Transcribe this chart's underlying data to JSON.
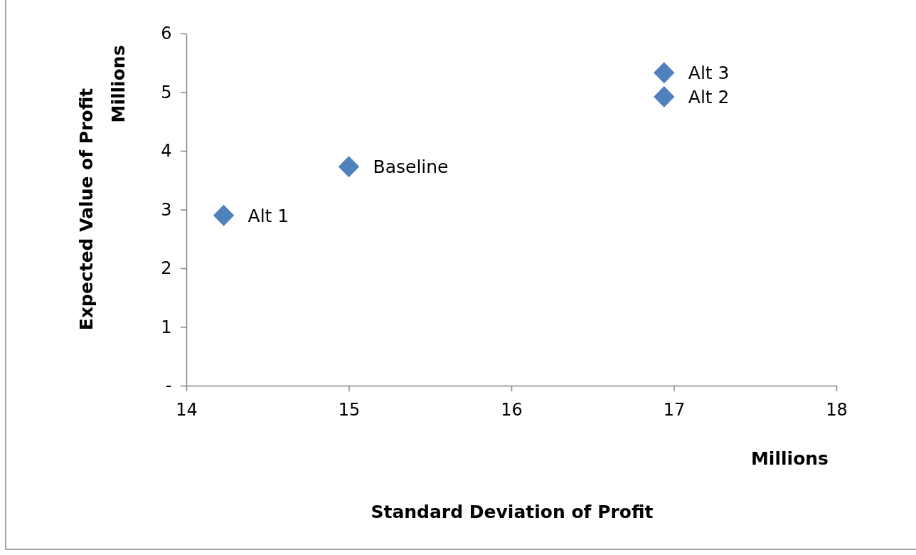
{
  "chart_data": {
    "type": "scatter",
    "xlabel": "Standard Deviation of Profit",
    "ylabel": "Expected Value of Profit",
    "x": [
      14.23,
      15.0,
      16.94,
      16.94
    ],
    "series": [
      {
        "color": "#4f81bd",
        "values": [
          2.9,
          3.73,
          4.92,
          5.33
        ]
      }
    ],
    "xlim": [
      14,
      18
    ],
    "xticks": [
      14,
      15,
      16,
      17,
      18
    ],
    "ylim": [
      0,
      6
    ],
    "yticks": [
      {
        "value": 0,
        "label": "-"
      },
      1,
      2,
      3,
      4,
      5,
      6
    ],
    "grid": false,
    "marker": "diamond",
    "annotations": [
      "Millions",
      "Millions",
      {
        "text": "Alt 1",
        "x": 14.23,
        "y": 2.9
      },
      {
        "text": "Baseline",
        "x": 15.0,
        "y": 3.73
      },
      {
        "text": "Alt 2",
        "x": 16.94,
        "y": 4.92
      },
      {
        "text": "Alt 3",
        "x": 16.94,
        "y": 5.33
      }
    ]
  }
}
